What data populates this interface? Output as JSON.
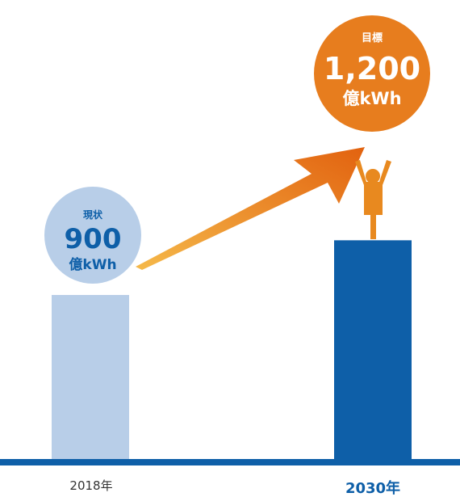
{
  "colors": {
    "bar_current": "#b8cee8",
    "bar_target": "#0e5fa8",
    "baseline": "#0e5fa8",
    "bubble_current": "#b8cee8",
    "bubble_target": "#e77d1e",
    "arrow_start": "#f5b94a",
    "arrow_end": "#e2620f",
    "figure": "#e8891f",
    "label_current": "#333333",
    "label_target": "#0e5fa8"
  },
  "chart_data": {
    "type": "bar",
    "categories": [
      "2018年",
      "2030年"
    ],
    "values": [
      900,
      1200
    ],
    "unit": "億kWh",
    "ylim": [
      0,
      1200
    ],
    "grid": false,
    "legend": "none",
    "annotations": [
      {
        "tag": "現状",
        "value": "900",
        "unit": "億kWh"
      },
      {
        "tag": "目標",
        "value": "1,200",
        "unit": "億kWh"
      }
    ]
  },
  "icons": {
    "arrow": "up-right-arrow-icon",
    "person": "person-cheering-icon"
  }
}
